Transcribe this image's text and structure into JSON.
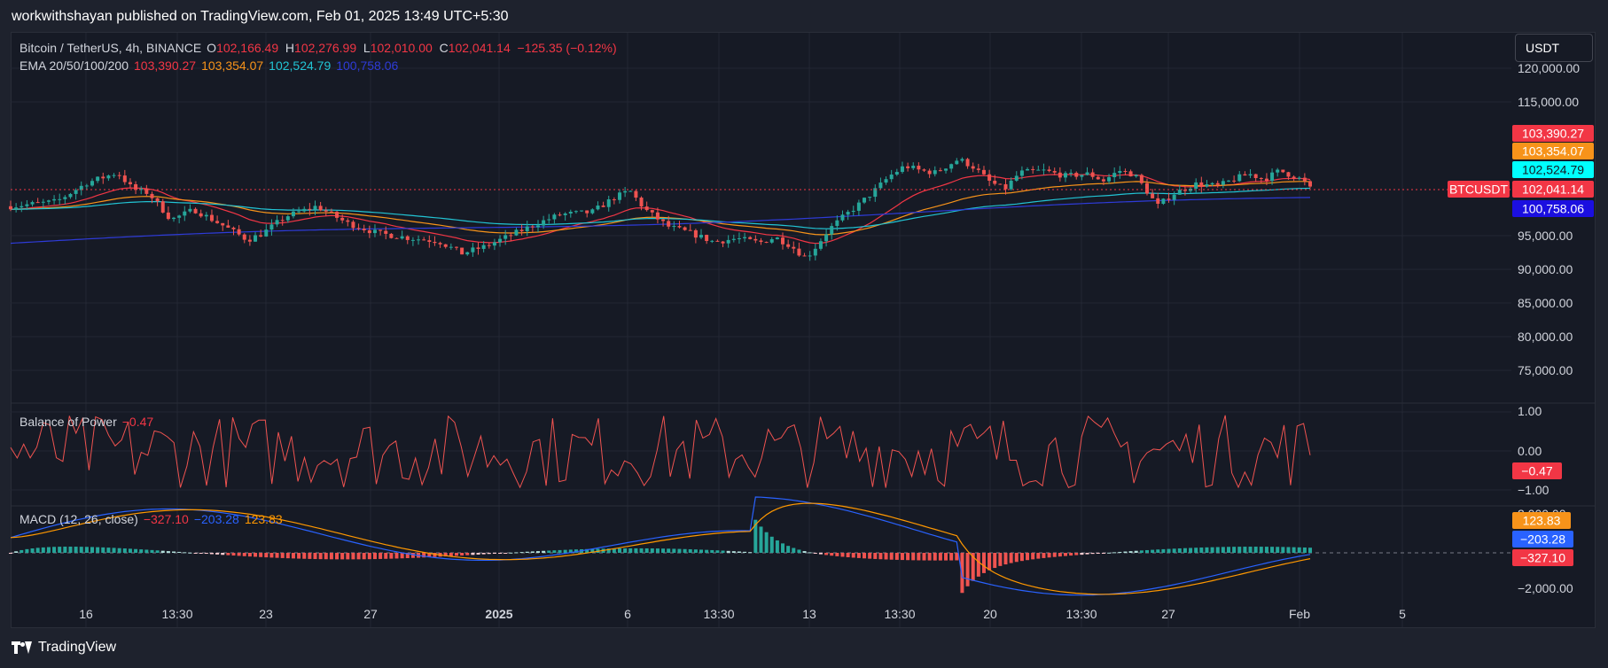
{
  "header": {
    "publisher": "workwithshayan published on TradingView.com, Feb 01, 2025 13:49 UTC+5:30"
  },
  "currency": "USDT",
  "footer": {
    "brand": "TradingView"
  },
  "colors": {
    "up": "#26a69a",
    "down": "#ef5350",
    "ema20": "#f23645",
    "ema50": "#f7931a",
    "ema100": "#22c4d4",
    "ema200": "#2e3bd8",
    "macd": "#2962ff",
    "signal": "#ff9800"
  },
  "main_legend": {
    "symbol": "Bitcoin / TetherUS, 4h, BINANCE",
    "o_label": "O",
    "o": "102,166.49",
    "h_label": "H",
    "h": "102,276.99",
    "l_label": "L",
    "l": "102,010.00",
    "c_label": "C",
    "c": "102,041.14",
    "change": "−125.35 (−0.12%)",
    "ema_label": "EMA 20/50/100/200",
    "ema20": "103,390.27",
    "ema50": "103,354.07",
    "ema100": "102,524.79",
    "ema200": "100,758.06"
  },
  "bop_legend": {
    "name": "Balance of Power",
    "value": "−0.47"
  },
  "macd_legend": {
    "name": "MACD (12, 26, close)",
    "hist": "−327.10",
    "macd": "−203.28",
    "signal": "123.83"
  },
  "chart_data": [
    {
      "type": "candlestick",
      "title": "Bitcoin / TetherUS, 4h, BINANCE",
      "x_ticks": [
        "16",
        "13:30",
        "23",
        "27",
        "2025",
        "6",
        "13:30",
        "13",
        "13:30",
        "20",
        "13:30",
        "27",
        "Feb",
        "5"
      ],
      "y_ticks": [
        "120,000.00",
        "115,000.00",
        "95,000.00",
        "90,000.00",
        "85,000.00",
        "80,000.00",
        "75,000.00"
      ],
      "price_label": "BTCUSDT",
      "last_price": "102,041.14",
      "ema_labels": [
        "103,390.27",
        "103,354.07",
        "102,524.79",
        "100,758.06"
      ],
      "close_path": [
        [
          0,
          99500
        ],
        [
          0.03,
          100200
        ],
        [
          0.05,
          103000
        ],
        [
          0.07,
          104500
        ],
        [
          0.08,
          102000
        ],
        [
          0.09,
          101500
        ],
        [
          0.105,
          97500
        ],
        [
          0.12,
          99000
        ],
        [
          0.14,
          96500
        ],
        [
          0.155,
          94500
        ],
        [
          0.165,
          95500
        ],
        [
          0.18,
          98000
        ],
        [
          0.2,
          99500
        ],
        [
          0.22,
          97000
        ],
        [
          0.24,
          95500
        ],
        [
          0.26,
          94800
        ],
        [
          0.28,
          94300
        ],
        [
          0.295,
          92500
        ],
        [
          0.31,
          93500
        ],
        [
          0.33,
          95500
        ],
        [
          0.345,
          97000
        ],
        [
          0.36,
          98300
        ],
        [
          0.38,
          98600
        ],
        [
          0.395,
          100800
        ],
        [
          0.405,
          101800
        ],
        [
          0.415,
          99000
        ],
        [
          0.43,
          96500
        ],
        [
          0.445,
          95500
        ],
        [
          0.46,
          94200
        ],
        [
          0.475,
          94700
        ],
        [
          0.49,
          94100
        ],
        [
          0.5,
          94900
        ],
        [
          0.51,
          93700
        ],
        [
          0.52,
          91800
        ],
        [
          0.525,
          93000
        ],
        [
          0.535,
          96000
        ],
        [
          0.545,
          98000
        ],
        [
          0.555,
          99800
        ],
        [
          0.565,
          101800
        ],
        [
          0.575,
          104000
        ],
        [
          0.585,
          105500
        ],
        [
          0.595,
          104800
        ],
        [
          0.605,
          104500
        ],
        [
          0.62,
          106500
        ],
        [
          0.63,
          105300
        ],
        [
          0.64,
          103200
        ],
        [
          0.65,
          102000
        ],
        [
          0.66,
          104500
        ],
        [
          0.675,
          104800
        ],
        [
          0.69,
          104000
        ],
        [
          0.705,
          104300
        ],
        [
          0.715,
          103300
        ],
        [
          0.725,
          104800
        ],
        [
          0.735,
          104200
        ],
        [
          0.745,
          101200
        ],
        [
          0.75,
          99500
        ],
        [
          0.76,
          101300
        ],
        [
          0.775,
          102800
        ],
        [
          0.79,
          102500
        ],
        [
          0.8,
          103500
        ],
        [
          0.81,
          104300
        ],
        [
          0.82,
          103500
        ],
        [
          0.83,
          104800
        ],
        [
          0.845,
          103400
        ],
        [
          0.85,
          102100
        ]
      ]
    },
    {
      "type": "line",
      "title": "Balance of Power",
      "y_ticks": [
        "1.00",
        "0.00",
        "−1.00"
      ],
      "last_value": "−0.47"
    },
    {
      "type": "histogram",
      "title": "MACD (12, 26, close)",
      "y_ticks": [
        "2,000.00",
        "−2,000.00"
      ],
      "values": {
        "histogram": "−327.10",
        "macd": "−203.28",
        "signal": "123.83"
      }
    }
  ]
}
